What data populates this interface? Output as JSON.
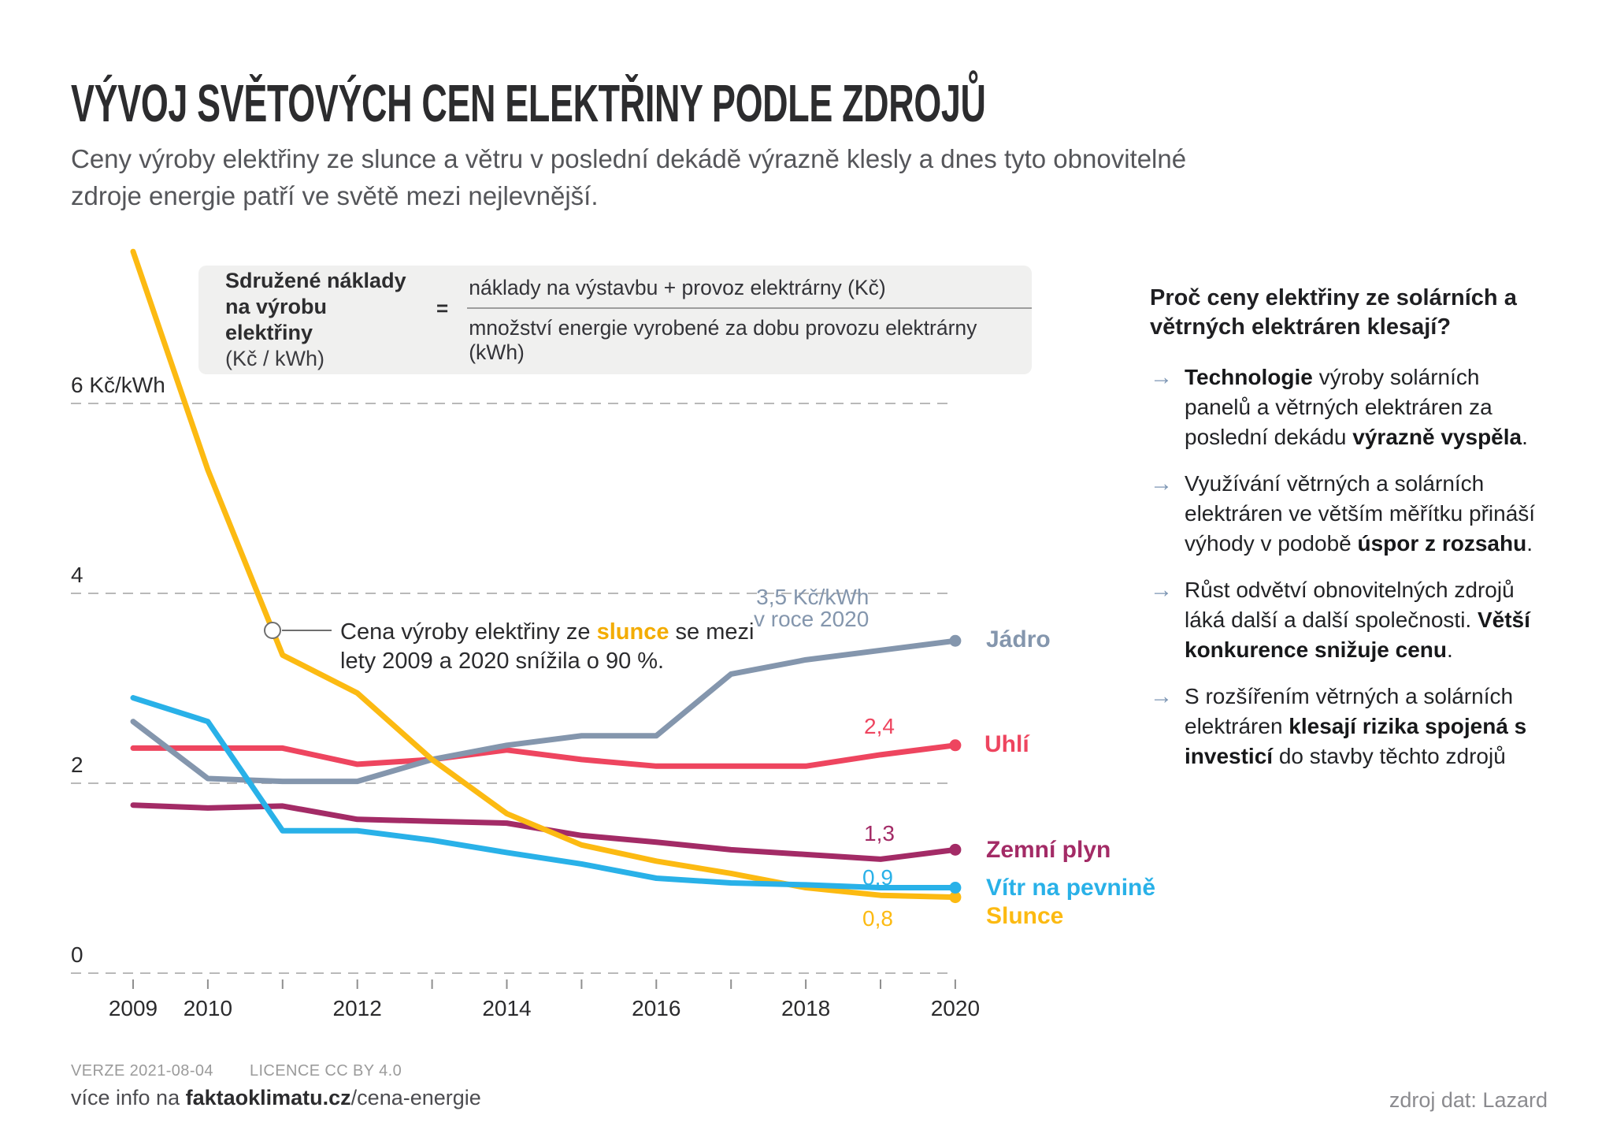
{
  "title": "VÝVOJ SVĚTOVÝCH CEN ELEKTŘINY PODLE ZDROJŮ",
  "subtitle_line1": "Ceny výroby elektřiny ze slunce a větru v poslední dekádě výrazně klesly a dnes tyto obnovitelné",
  "subtitle_line2": "zdroje energie patří ve světě mezi nejlevnější.",
  "formula": {
    "label_line1": "Sdružené náklady",
    "label_line2": "na výrobu elektřiny",
    "label_line3": "(Kč / kWh)",
    "equals": "=",
    "numerator": "náklady na výstavbu + provoz elektrárny (Kč)",
    "denominator": "množství energie vyrobené za dobu provozu elektrárny (kWh)"
  },
  "annotation": {
    "segments": [
      {
        "t": "Cena výroby elektřiny ze "
      },
      {
        "t": "slunce",
        "b": true,
        "color": "#f3ac00"
      },
      {
        "t": " se mezi"
      }
    ],
    "line2": "lety 2009 a 2020 snížila o 90 %."
  },
  "chart_data": {
    "type": "line",
    "x": [
      2009,
      2010,
      2011,
      2012,
      2013,
      2014,
      2015,
      2016,
      2017,
      2018,
      2019,
      2020
    ],
    "x_tick_labels": [
      "2009",
      "2010",
      "2012",
      "2014",
      "2016",
      "2018",
      "2020"
    ],
    "y_gridlines": [
      6,
      4,
      2,
      0
    ],
    "y_tick_labels": [
      "6 Kč/kWh",
      "4",
      "2",
      "0"
    ],
    "ylim": [
      0,
      8
    ],
    "grid": "dashed-horizontal",
    "series": [
      {
        "name": "Uhlí",
        "color": "#ee455f",
        "values": [
          2.37,
          2.37,
          2.37,
          2.2,
          2.25,
          2.35,
          2.25,
          2.18,
          2.18,
          2.18,
          2.3,
          2.4
        ],
        "end_label": "2,4"
      },
      {
        "name": "Jádro",
        "color": "#8496ad",
        "values": [
          2.65,
          2.05,
          2.02,
          2.02,
          2.25,
          2.4,
          2.5,
          2.5,
          3.15,
          3.3,
          3.4,
          3.5
        ],
        "end_label": "3,5 Kč/kWh",
        "end_sublabel": "v roce 2020"
      },
      {
        "name": "Zemní plyn",
        "color": "#a32b66",
        "values": [
          1.77,
          1.74,
          1.76,
          1.62,
          1.6,
          1.58,
          1.45,
          1.38,
          1.3,
          1.25,
          1.2,
          1.3
        ],
        "end_label": "1,3"
      },
      {
        "name": "Slunce",
        "color": "#fcba12",
        "values": [
          7.6,
          5.3,
          3.35,
          2.95,
          2.25,
          1.68,
          1.35,
          1.18,
          1.05,
          0.9,
          0.82,
          0.8
        ],
        "end_label": "0,8"
      },
      {
        "name": "Vítr na pevnině",
        "color": "#29b1e8",
        "values": [
          2.9,
          2.65,
          1.5,
          1.5,
          1.4,
          1.27,
          1.15,
          1.0,
          0.95,
          0.93,
          0.9,
          0.9
        ],
        "end_label": "0,9"
      }
    ]
  },
  "why_panel": {
    "arrow": "→",
    "heading": "Proč ceny elektřiny ze solárních a větrných elektráren klesají?",
    "bullets": [
      [
        {
          "t": "Technologie",
          "b": true
        },
        {
          "t": " výroby solárních panelů a větrných elektráren za poslední dekádu "
        },
        {
          "t": "výrazně vyspěla",
          "b": true
        },
        {
          "t": "."
        }
      ],
      [
        {
          "t": "Využívání větrných a solárních elektráren ve větším měřítku přináší výhody v podobě "
        },
        {
          "t": "úspor z rozsahu",
          "b": true
        },
        {
          "t": "."
        }
      ],
      [
        {
          "t": "Růst odvětví obnovitelných zdrojů láká další a další společnosti. "
        },
        {
          "t": "Větší konkurence snižuje cenu",
          "b": true
        },
        {
          "t": "."
        }
      ],
      [
        {
          "t": "S rozšířením větrných a solárních elektráren "
        },
        {
          "t": "klesají rizika spojená s investicí",
          "b": true
        },
        {
          "t": " do stavby těchto zdrojů"
        }
      ]
    ]
  },
  "footer": {
    "version": "VERZE 2021-08-04",
    "licence": "LICENCE CC BY 4.0",
    "info_segments": [
      {
        "t": "více info na "
      },
      {
        "t": "faktaoklimatu.cz",
        "b": true
      },
      {
        "t": "/cena-energie"
      }
    ],
    "source": "zdroj dat: Lazard"
  }
}
